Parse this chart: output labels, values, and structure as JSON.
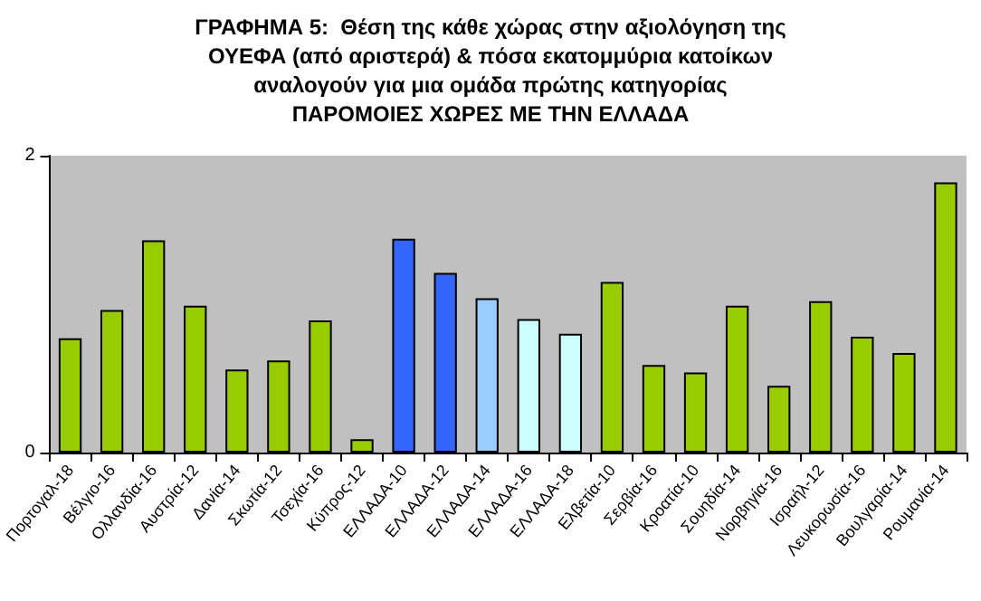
{
  "chart_data": {
    "type": "bar",
    "title": "ΓΡΑΦΗΜΑ 5:  Θέση της κάθε χώρας στην αξιολόγηση της\nΟΥΕΦΑ (από αριστερά) & πόσα εκατομμύρια κατοίκων\nαναλογούν για μια ομάδα πρώτης κατηγορίας\nΠΑΡΟΜΟΙΕΣ ΧΩΡΕΣ ΜΕ ΤΗΝ ΕΛΛΑΔΑ",
    "categories": [
      "Πορτογαλ-18",
      "Βέλγιο-16",
      "Ολλανδία-16",
      "Αυστρία-12",
      "Δανία-14",
      "Σκωτία-12",
      "Τσεχία-16",
      "Κύπρος-12",
      "ΕΛΛΑΔΑ-10",
      "ΕΛΛΑΔΑ-12",
      "ΕΛΛΑΔΑ-14",
      "ΕΛΛΑΔΑ-16",
      "ΕΛΛΑΔΑ-18",
      "Ελβετία-10",
      "Σερβία-16",
      "Κροατία-10",
      "Σουηδία-14",
      "Νορβηγία-16",
      "Ισραήλ-12",
      "Λευκορωσία-16",
      "Βουλγαρία-14",
      "Ρουμανία-14"
    ],
    "values": [
      0.77,
      0.96,
      1.43,
      0.99,
      0.56,
      0.62,
      0.89,
      0.09,
      1.44,
      1.21,
      1.04,
      0.9,
      0.8,
      1.15,
      0.59,
      0.54,
      0.99,
      0.45,
      1.02,
      0.78,
      0.67,
      1.82
    ],
    "colors": [
      "#99cc00",
      "#99cc00",
      "#99cc00",
      "#99cc00",
      "#99cc00",
      "#99cc00",
      "#99cc00",
      "#99cc00",
      "#3366ff",
      "#3366ff",
      "#99ccff",
      "#ccffff",
      "#ccffff",
      "#99cc00",
      "#99cc00",
      "#99cc00",
      "#99cc00",
      "#99cc00",
      "#99cc00",
      "#99cc00",
      "#99cc00",
      "#99cc00"
    ],
    "ylim": [
      0,
      2
    ],
    "yticks": [
      0,
      2
    ],
    "grid": false
  }
}
